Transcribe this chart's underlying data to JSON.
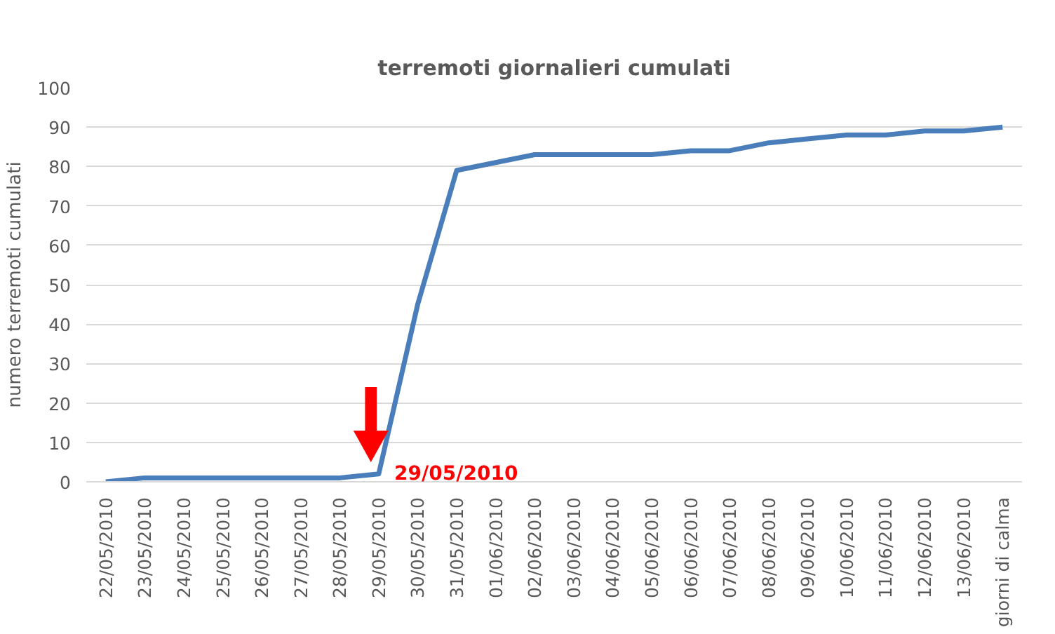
{
  "chart_data": {
    "type": "line",
    "title": "terremoti giornalieri cumulati",
    "ylabel": "numero terremoti cumulati",
    "categories": [
      "22/05/2010",
      "23/05/2010",
      "24/05/2010",
      "25/05/2010",
      "26/05/2010",
      "27/05/2010",
      "28/05/2010",
      "29/05/2010",
      "30/05/2010",
      "31/05/2010",
      "01/06/2010",
      "02/06/2010",
      "03/06/2010",
      "04/06/2010",
      "05/06/2010",
      "06/06/2010",
      "07/06/2010",
      "08/06/2010",
      "09/06/2010",
      "10/06/2010",
      "11/06/2010",
      "12/06/2010",
      "13/06/2010",
      "giorni di calma"
    ],
    "series": [
      {
        "color": "#4a7ebb",
        "values": [
          0,
          1,
          1,
          1,
          1,
          1,
          1,
          2,
          45,
          79,
          81,
          83,
          83,
          83,
          83,
          84,
          84,
          86,
          87,
          88,
          88,
          89,
          89,
          90
        ]
      }
    ],
    "ylim": [
      0,
      100
    ],
    "yticks": [
      0,
      10,
      20,
      30,
      40,
      50,
      60,
      70,
      80,
      90,
      100
    ],
    "grid": "y",
    "marker": "none",
    "line_style": "solid",
    "annotations": [
      {
        "text": "29/05/2010",
        "x": "29/05/2010",
        "y": 2
      }
    ]
  }
}
